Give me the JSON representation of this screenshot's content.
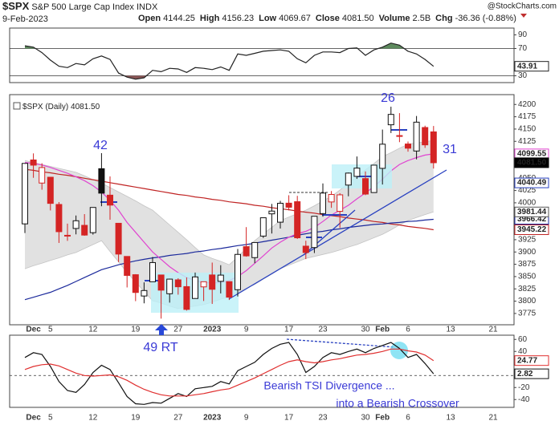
{
  "header": {
    "symbol": "$SPX",
    "name": "S&P 500 Large Cap Index",
    "exchange": "INDX",
    "date": "9-Feb-2023",
    "watermark": "@StockCharts.com",
    "stats": [
      {
        "name": "Open",
        "value": 4144.25
      },
      {
        "name": "High",
        "value": 4156.23
      },
      {
        "name": "Low",
        "value": 4069.67
      },
      {
        "name": "Close",
        "value": {
          "value": 4081.5,
          "label": "4081.50"
        }
      },
      {
        "name": "Volume",
        "value": {
          "value": 2500000000,
          "label": "2.5B"
        }
      },
      {
        "name": "Chg",
        "value": -36.36,
        "pct": {
          "value": -0.88,
          "label": "(-0.88%)"
        }
      }
    ]
  },
  "chart_data": [
    {
      "type": "line",
      "ylim": [
        20,
        100
      ],
      "yticks": [
        90,
        70,
        30
      ],
      "levels": [
        70,
        30
      ],
      "level_style": "solid",
      "overbought": 70,
      "oversold": 30,
      "overbought_color": "#5d8a5d",
      "oversold_color": "#8a5656",
      "series": [
        {
          "color": "#222222",
          "box": true,
          "values": [
            74,
            72,
            64,
            53,
            44,
            42,
            48,
            46,
            55,
            59,
            54,
            34,
            28,
            25,
            27,
            38,
            36,
            41,
            40,
            35,
            42,
            41,
            39,
            43,
            38,
            62,
            60,
            63,
            66,
            67,
            68,
            66,
            55,
            49,
            60,
            65,
            65,
            64,
            70,
            71,
            60,
            68,
            72,
            78,
            75,
            66,
            62,
            54,
            43.91,
            null,
            null,
            null,
            null,
            null,
            null,
            null
          ]
        }
      ]
    },
    {
      "type": "candlestick",
      "legend": "$SPX (Daily)",
      "ylim": [
        3752,
        4220
      ],
      "yticks": [
        4200,
        4175,
        4150,
        4125,
        4050,
        4025,
        4000,
        3925,
        3900,
        3875,
        3850,
        3825,
        3800,
        3775
      ],
      "up_color": "#111111",
      "down_color": "#d42424",
      "categories": [
        null,
        "Dec",
        null,
        "5",
        null,
        null,
        null,
        null,
        "12",
        null,
        null,
        null,
        null,
        "19",
        null,
        null,
        null,
        null,
        "27",
        null,
        null,
        null,
        "2023",
        null,
        null,
        null,
        "9",
        null,
        null,
        null,
        null,
        "17",
        null,
        null,
        null,
        "23",
        null,
        null,
        null,
        null,
        "30",
        null,
        "Feb",
        null,
        null,
        "6",
        null,
        null,
        null,
        null,
        "13",
        null,
        null,
        null,
        null,
        "21"
      ],
      "open": [
        3957.18,
        4087.14,
        4040.17,
        4052.02,
        3996.63,
        3933.28,
        3947.79,
        3954.17,
        3939.29,
        4069.38,
        4015.54,
        3958.37,
        3890.91,
        3853.79,
        3810.47,
        3839.49,
        3853.26,
        3815.11,
        3843.34,
        3829.56,
        3805.45,
        3829.06,
        3853.29,
        3840.36,
        3839.74,
        3823.37,
        3910.82,
        3888.57,
        3932.35,
        3977.57,
        3960.6,
        3999.28,
        4002.25,
        3911.84,
        3909.04,
        3978.14,
        4001.74,
        3982.71,
        4036.08,
        4053.72,
        4049.27,
        4020.85,
        4070.07,
        4158.68,
        4136.69,
        4119.57,
        4105.35,
        4153.11,
        4144.25,
        null,
        null,
        null,
        null,
        null,
        null,
        null
      ],
      "high": [
        4080.11,
        4100.51,
        4080.48,
        4052.45,
        4001.51,
        3957.57,
        3974.19,
        3977.02,
        3990.71,
        4100.96,
        4053.76,
        3958.37,
        3890.91,
        3854.86,
        3838.24,
        3889.82,
        3853.26,
        3845.8,
        3846.65,
        3848.32,
        3858.19,
        3839.85,
        3878.46,
        3873.16,
        3839.74,
        3906.19,
        3950.57,
        3919.83,
        3970.07,
        3997.76,
        4003.95,
        4015.39,
        4014.16,
        3922.94,
        3972.96,
        4039.31,
        4023.92,
        4019.55,
        4061.57,
        4094.21,
        4063.85,
        4077.16,
        4148.95,
        4195.44,
        4182.36,
        4124.63,
        4176.54,
        4156.85,
        4156.23,
        null,
        null,
        null,
        null,
        null,
        null,
        null
      ],
      "low": [
        3938.58,
        4050.87,
        4026.63,
        3984.49,
        3918.39,
        3922.68,
        3935.83,
        3933.04,
        3935.3,
        3993.03,
        3965.65,
        3879.45,
        3827.91,
        3800.04,
        3795.62,
        3839.49,
        3764.49,
        3797.01,
        3813.22,
        3780.78,
        3805.45,
        3800.34,
        3794.33,
        3815.77,
        3802.42,
        3809.56,
        3890.42,
        3877.29,
        3928.54,
        3937.56,
        3947.67,
        3984.57,
        3926.59,
        3885.54,
        3897.86,
        3971.64,
        3989.79,
        3949.06,
        4013.29,
        4048.7,
        4015.55,
        4020.44,
        4037.2,
        4141.88,
        4123.36,
        4103.98,
        4088.39,
        4111.67,
        4069.67,
        null,
        null,
        null,
        null,
        null,
        null,
        null
      ],
      "close": [
        4080.11,
        4076.57,
        4071.7,
        3998.84,
        3941.26,
        3933.92,
        3963.51,
        3934.38,
        3990.56,
        4019.65,
        3995.32,
        3895.75,
        3852.36,
        3817.66,
        3821.62,
        3878.44,
        3822.39,
        3844.82,
        3829.25,
        3783.22,
        3849.28,
        3839.5,
        3824.14,
        3852.97,
        3808.1,
        3895.08,
        3892.09,
        3919.25,
        3969.61,
        3983.17,
        3999.09,
        3990.97,
        3928.86,
        3898.85,
        3972.61,
        4019.81,
        4016.95,
        4016.22,
        4060.43,
        4070.56,
        4017.77,
        4076.6,
        4119.21,
        4179.76,
        4136.48,
        4111.08,
        4164,
        4117.86,
        4081.5,
        null,
        null,
        null,
        null,
        null,
        null,
        null
      ],
      "band": {
        "color": "#dcdcdc",
        "box_color": "#555555",
        "upper": [
          4086,
          4082,
          4078,
          4074,
          4070,
          4066,
          4062,
          4055,
          4047,
          4040,
          4031,
          4022,
          4013,
          4004,
          3994,
          3985,
          3970,
          3955,
          3940,
          3925,
          3909,
          3894,
          3887,
          3881,
          3874,
          3890,
          3907,
          3923,
          3937,
          3950,
          3964,
          3971,
          3978,
          3985,
          3994,
          4004,
          4013,
          4026,
          4040,
          4053,
          4067,
          4080,
          4094,
          4102,
          4111,
          4119,
          4122,
          4124,
          4127,
          null,
          null,
          null,
          null,
          null,
          null,
          null
        ],
        "lower": [
          3866,
          3872,
          3877,
          3883,
          3888,
          3894,
          3899,
          3907,
          3915,
          3923,
          3901,
          3880,
          3858,
          3839,
          3820,
          3801,
          3796,
          3790,
          3785,
          3788,
          3790,
          3793,
          3798,
          3804,
          3809,
          3817,
          3826,
          3834,
          3845,
          3855,
          3866,
          3873,
          3880,
          3887,
          3891,
          3895,
          3899,
          3904,
          3910,
          3915,
          3922,
          3929,
          3936,
          3945,
          3955,
          3964,
          3970,
          3976,
          3981.44,
          null,
          null,
          null,
          null,
          null,
          null,
          null
        ]
      },
      "overlays": [
        {
          "color": "#c02424",
          "values": [
            4068,
            4066,
            4063,
            4061,
            4058,
            4056,
            4053,
            4050,
            4047,
            4044,
            4041,
            4038,
            4035,
            4032,
            4029,
            4026,
            4023,
            4020,
            4017,
            4015,
            4012,
            4010,
            4007,
            4005,
            4002,
            4000,
            3998,
            3995,
            3993,
            3990,
            3988,
            3986,
            3983,
            3981,
            3979,
            3976,
            3974,
            3972,
            3969,
            3967,
            3965,
            3962,
            3960,
            3957,
            3955,
            3952,
            3950,
            3948,
            3945.22,
            null,
            null,
            null,
            null,
            null,
            null,
            null
          ]
        },
        {
          "color": "#1c2a9c",
          "values": [
            3803,
            3808,
            3813,
            3818,
            3825,
            3832,
            3840,
            3848,
            3856,
            3864,
            3869,
            3874,
            3878,
            3882,
            3885,
            3888,
            3890,
            3893,
            3895,
            3897,
            3900,
            3902,
            3905,
            3907,
            3910,
            3913,
            3915,
            3918,
            3921,
            3924,
            3927,
            3930,
            3934,
            3937,
            3940,
            3942,
            3945,
            3947,
            3950,
            3952,
            3954,
            3956,
            3957,
            3959,
            3960,
            3962,
            3963,
            3965,
            3966.42,
            null,
            null,
            null,
            null,
            null,
            null,
            null
          ]
        },
        {
          "color": "#e044d0",
          "values": [
            4082,
            4080,
            4077,
            4072,
            4066,
            4060,
            4053,
            4045,
            4035,
            4022,
            4005,
            3985,
            3960,
            3940,
            3920,
            3900,
            3885,
            3870,
            3858,
            3848,
            3842,
            3838,
            3837,
            3838,
            3842,
            3850,
            3862,
            3877,
            3892,
            3908,
            3920,
            3930,
            3937,
            3942,
            3950,
            3962,
            3975,
            3985,
            3995,
            4008,
            4020,
            4033,
            4048,
            4065,
            4078,
            4086,
            4092,
            4097,
            4099.55,
            null,
            null,
            null,
            null,
            null,
            null,
            null
          ]
        }
      ],
      "marker_values": [
        4040.49
      ],
      "annotations": [
        "42",
        "26",
        "31",
        "49 RT"
      ]
    },
    {
      "type": "line",
      "ylim": [
        -53,
        67
      ],
      "yticks": [
        60,
        40,
        20,
        -20,
        -40
      ],
      "levels": [
        0
      ],
      "level_style": "dashed",
      "series": [
        {
          "color": "#111111",
          "box": true,
          "values": [
            30,
            38,
            35,
            15,
            -10,
            -25,
            -28,
            -15,
            5,
            17,
            10,
            -12,
            -35,
            -47,
            -48,
            -45,
            -46,
            -38,
            -30,
            -35,
            -22,
            -20,
            -18,
            -10,
            -14,
            8,
            15,
            22,
            35,
            45,
            52,
            55,
            35,
            5,
            15,
            30,
            38,
            35,
            40,
            44,
            38,
            45,
            50,
            55,
            45,
            30,
            35,
            20,
            2.82,
            null,
            null,
            null,
            null,
            null,
            null,
            null
          ]
        },
        {
          "color": "#e03030",
          "box": true,
          "values": [
            10,
            15,
            18,
            19,
            16,
            10,
            4,
            0,
            -1,
            0,
            1,
            -2,
            -8,
            -16,
            -23,
            -28,
            -32,
            -34,
            -34,
            -34,
            -32,
            -30,
            -27,
            -24,
            -22,
            -16,
            -10,
            -4,
            3,
            10,
            17,
            23,
            26,
            23,
            21,
            23,
            26,
            28,
            31,
            34,
            35,
            37,
            40,
            44,
            44,
            41,
            39,
            34,
            24.77,
            null,
            null,
            null,
            null,
            null,
            null,
            null
          ]
        }
      ],
      "annotations": [
        "Bearish TSI Divergence ...",
        "into a Bearish Crossover"
      ]
    }
  ]
}
